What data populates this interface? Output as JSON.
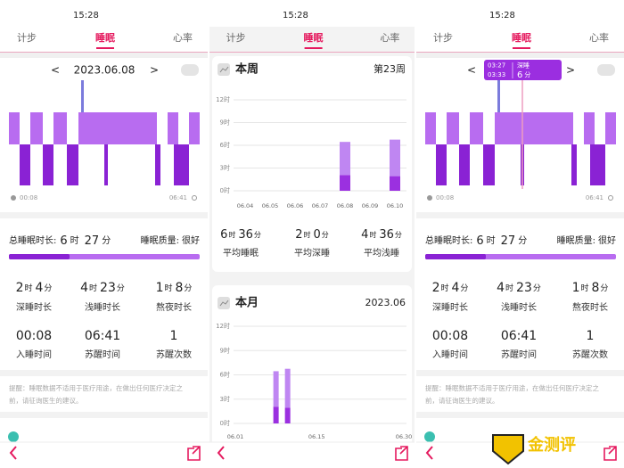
{
  "status_bar": {
    "time": "15:28"
  },
  "tabs": [
    "计步",
    "睡眠",
    "心率"
  ],
  "units": {
    "hour": "时",
    "minute": "分"
  },
  "day": {
    "prev": "<",
    "date": "2023.06.08",
    "next": ">",
    "start_time": "00:08",
    "end_time": "06:41",
    "total_label": "总睡眠时长:",
    "total_hours": "6",
    "total_minutes": "27",
    "quality_label": "睡眠质量:",
    "quality": "很好",
    "stats": [
      {
        "hours": "2",
        "minutes": "4",
        "label": "深睡时长"
      },
      {
        "hours": "4",
        "minutes": "23",
        "label": "浅睡时长"
      },
      {
        "hours": "1",
        "minutes": "8",
        "label": "熬夜时长"
      },
      {
        "value": "00:08",
        "label": "入睡时间"
      },
      {
        "value": "06:41",
        "label": "苏醒时间"
      },
      {
        "value": "1",
        "label": "苏醒次数"
      }
    ],
    "disclaimer": [
      "提醒：睡眠数据不适用于医疗用途，在做出任何医疗决定之",
      "前，请征询医生的建议。"
    ]
  },
  "tooltip": {
    "start": "03:27",
    "end": "03:33",
    "stage": "深睡",
    "minutes": "6"
  },
  "week": {
    "type": "bar",
    "title": "本周",
    "period": "第23周",
    "categories": [
      "06.04",
      "06.05",
      "06.06",
      "06.07",
      "06.08",
      "06.09",
      "06.10"
    ],
    "series": [
      {
        "color": "#9b30e0",
        "values": [
          null,
          null,
          null,
          null,
          2.07,
          null,
          1.93
        ]
      },
      {
        "color": "#bf86f2",
        "values": [
          null,
          null,
          null,
          null,
          4.38,
          null,
          4.82
        ]
      }
    ],
    "ylim": [
      0,
      12
    ],
    "yticks": [
      {
        "value": 0,
        "label": "0时"
      },
      {
        "value": 3,
        "label": "3时"
      },
      {
        "value": 6,
        "label": "6时"
      },
      {
        "value": 9,
        "label": "9时"
      },
      {
        "value": 12,
        "label": "12时"
      }
    ],
    "averages": [
      {
        "hours": "6",
        "minutes": "36",
        "label": "平均睡眠"
      },
      {
        "hours": "2",
        "minutes": "0",
        "label": "平均深睡"
      },
      {
        "hours": "4",
        "minutes": "36",
        "label": "平均浅睡"
      }
    ]
  },
  "month": {
    "type": "bar",
    "title": "本月",
    "period": "2023.06",
    "x": [
      "06.08",
      "06.10"
    ],
    "xlim": [
      "06.01",
      "06.30"
    ],
    "xticks": [
      "06.01",
      "06.15",
      "06.30"
    ],
    "series": [
      {
        "color": "#9b30e0",
        "values": [
          2.07,
          1.93
        ]
      },
      {
        "color": "#bf86f2",
        "values": [
          4.38,
          4.82
        ]
      }
    ],
    "ylim": [
      0,
      12
    ],
    "yticks": [
      {
        "value": 0,
        "label": "0时"
      },
      {
        "value": 3,
        "label": "3时"
      },
      {
        "value": 6,
        "label": "6时"
      },
      {
        "value": 9,
        "label": "9时"
      },
      {
        "value": 12,
        "label": "12时"
      }
    ]
  },
  "watermark": "金测评"
}
